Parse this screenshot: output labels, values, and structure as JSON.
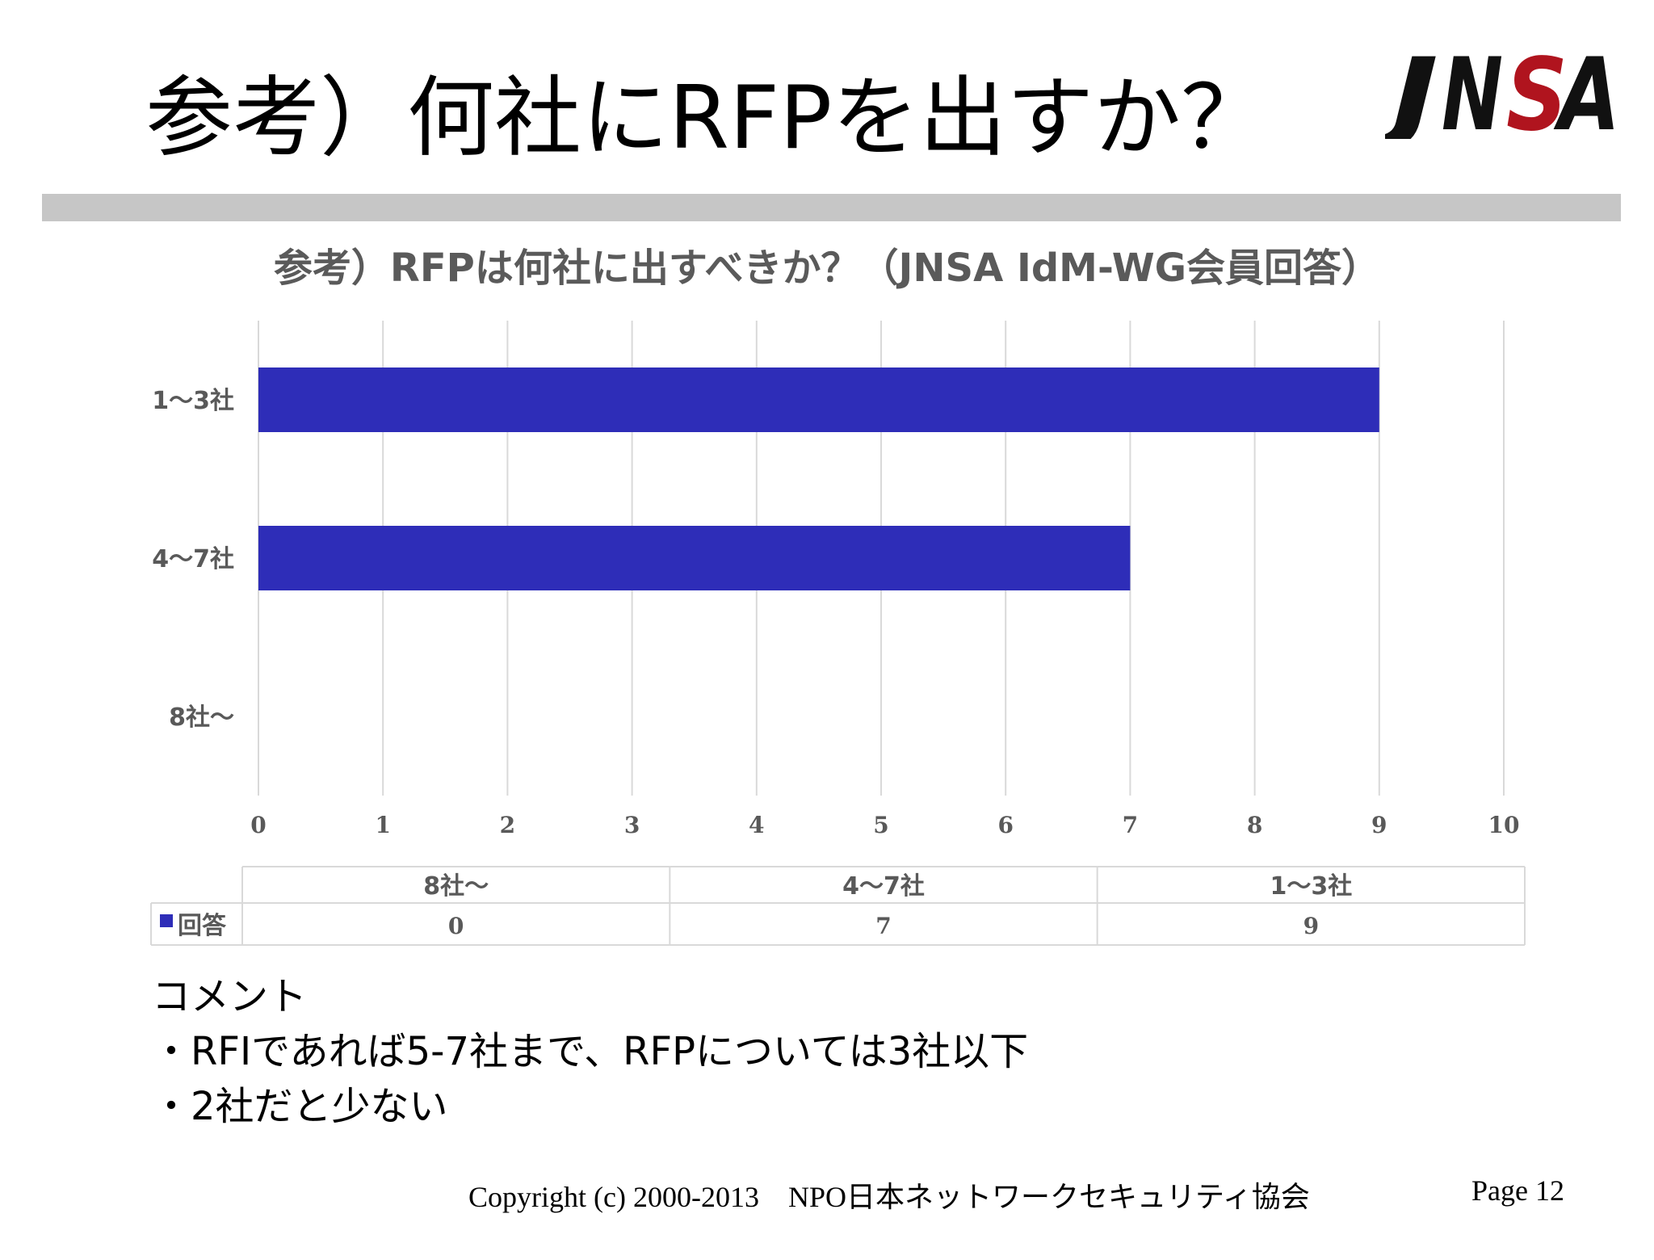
{
  "slide": {
    "title": "参考）何社にRFPを出すか？",
    "logo_text": "JNSA",
    "comment_heading": "コメント",
    "comments": [
      "・RFIであれば5-7社まで、RFPについては3社以下",
      "・2社だと少ない"
    ],
    "copyright": "Copyright (c) 2000-2013　NPO日本ネットワークセキュリティ協会",
    "page": "Page 12"
  },
  "colors": {
    "bar": "#2e2db8",
    "title_rule": "#c6c6c6",
    "logo_black": "#111111",
    "logo_red": "#b0141e",
    "gridline": "#d9d9d9",
    "chart_text": "#595959"
  },
  "chart_data": {
    "type": "bar",
    "orientation": "horizontal",
    "title": "参考）RFPは何社に出すべきか？（JNSA IdM-WG会員回答）",
    "categories": [
      "1～3社",
      "4～7社",
      "8社～"
    ],
    "series": [
      {
        "name": "回答",
        "values": [
          9,
          7,
          0
        ]
      }
    ],
    "xlim": [
      0,
      10
    ],
    "x_ticks": [
      "0",
      "1",
      "2",
      "3",
      "4",
      "5",
      "6",
      "7",
      "8",
      "9",
      "10"
    ],
    "grid": true,
    "data_table": {
      "columns": [
        "8社～",
        "4～7社",
        "1～3社"
      ],
      "series_label": "回答",
      "values": [
        "0",
        "7",
        "9"
      ]
    }
  }
}
